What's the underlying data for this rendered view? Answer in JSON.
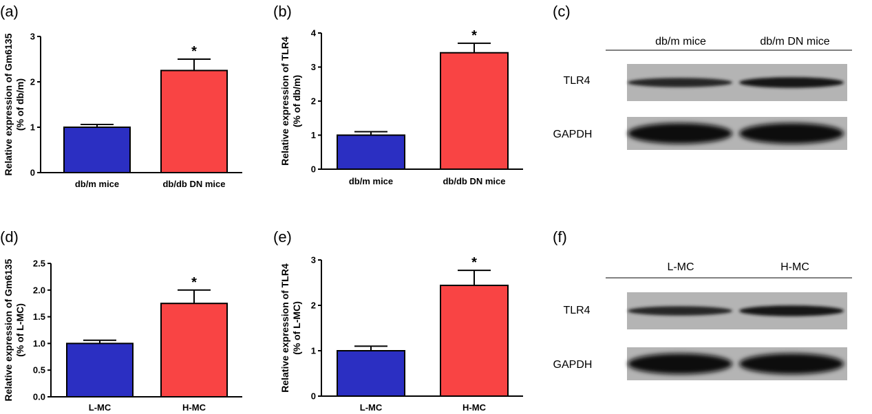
{
  "chart_data": [
    {
      "panel": "(a)",
      "type": "bar",
      "categories": [
        "db/m mice",
        "db/db DN mice"
      ],
      "values": [
        1.0,
        2.25
      ],
      "errors": [
        0.06,
        0.25
      ],
      "significance": [
        "",
        "*"
      ],
      "colors": [
        "#2b2fc2",
        "#f94444"
      ],
      "ylabel_lines": [
        "Relative expression of Gm6135",
        "(% of db/m)"
      ],
      "ylim": [
        0,
        3
      ],
      "yticks": [
        "0",
        "1",
        "2",
        "3"
      ],
      "ytick_values": [
        0,
        1,
        2,
        3
      ]
    },
    {
      "panel": "(b)",
      "type": "bar",
      "categories": [
        "db/m mice",
        "db/db DN mice"
      ],
      "values": [
        1.0,
        3.42
      ],
      "errors": [
        0.1,
        0.28
      ],
      "significance": [
        "",
        "*"
      ],
      "colors": [
        "#2b2fc2",
        "#f94444"
      ],
      "ylabel_lines": [
        "Relative expression of TLR4",
        "(% of db/m)"
      ],
      "ylim": [
        0,
        4
      ],
      "yticks": [
        "0",
        "1",
        "2",
        "3",
        "4"
      ],
      "ytick_values": [
        0,
        1,
        2,
        3,
        4
      ]
    },
    {
      "panel": "(d)",
      "type": "bar",
      "categories": [
        "L-MC",
        "H-MC"
      ],
      "values": [
        1.0,
        1.75
      ],
      "errors": [
        0.06,
        0.25
      ],
      "significance": [
        "",
        "*"
      ],
      "colors": [
        "#2b2fc2",
        "#f94444"
      ],
      "ylabel_lines": [
        "Relative expression of Gm6135",
        "(% of L-MC)"
      ],
      "ylim": [
        0,
        2.5
      ],
      "yticks": [
        "0.0",
        "0.5",
        "1.0",
        "1.5",
        "2.0",
        "2.5"
      ],
      "ytick_values": [
        0,
        0.5,
        1.0,
        1.5,
        2.0,
        2.5
      ]
    },
    {
      "panel": "(e)",
      "type": "bar",
      "categories": [
        "L-MC",
        "H-MC"
      ],
      "values": [
        1.0,
        2.44
      ],
      "errors": [
        0.1,
        0.33
      ],
      "significance": [
        "",
        "*"
      ],
      "colors": [
        "#2b2fc2",
        "#f94444"
      ],
      "ylabel_lines": [
        "Relative expression of TLR4",
        "(% of L-MC)"
      ],
      "ylim": [
        0,
        3
      ],
      "yticks": [
        "0",
        "1",
        "2",
        "3"
      ],
      "ytick_values": [
        0,
        1,
        2,
        3
      ]
    }
  ],
  "blots": [
    {
      "panel": "(c)",
      "columns": [
        "db/m mice",
        "db/m DN mice"
      ],
      "rows": [
        "TLR4",
        "GAPDH"
      ],
      "band_intensity": [
        [
          0.55,
          0.75
        ],
        [
          1.0,
          1.0
        ]
      ]
    },
    {
      "panel": "(f)",
      "columns": [
        "L-MC",
        "H-MC"
      ],
      "rows": [
        "TLR4",
        "GAPDH"
      ],
      "band_intensity": [
        [
          0.55,
          0.75
        ],
        [
          1.0,
          1.0
        ]
      ]
    }
  ]
}
